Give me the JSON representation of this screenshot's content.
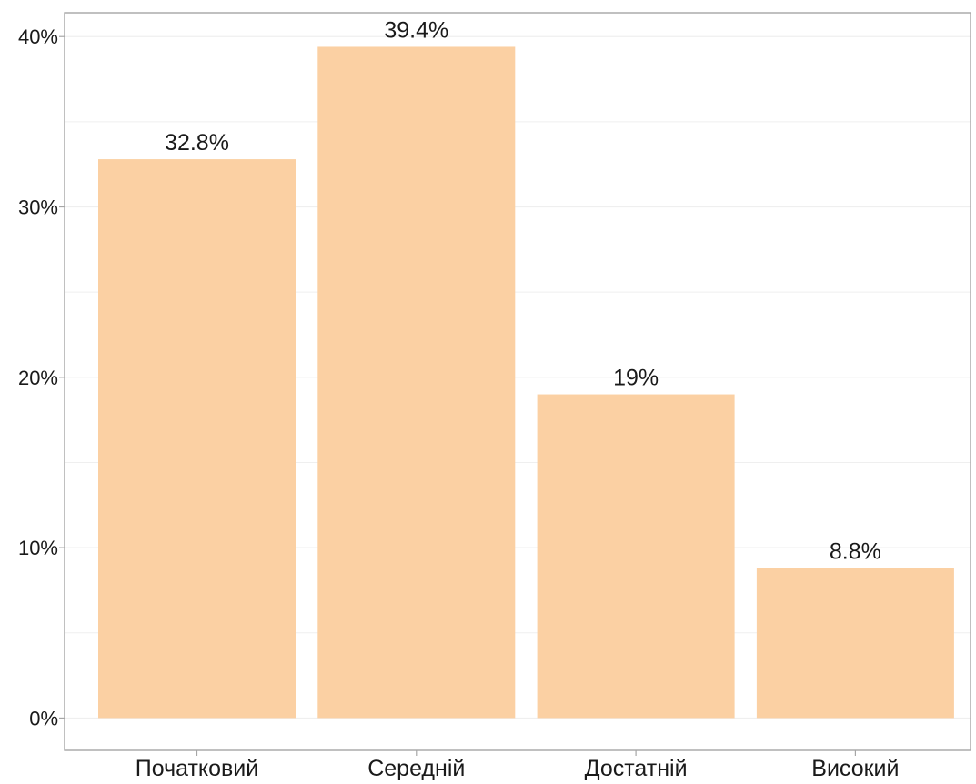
{
  "chart_data": {
    "type": "bar",
    "categories": [
      "Початковий",
      "Середній",
      "Достатній",
      "Високий"
    ],
    "values": [
      32.8,
      39.4,
      19,
      8.8
    ],
    "value_labels": [
      "32.8%",
      "39.4%",
      "19%",
      "8.8%"
    ],
    "title": "",
    "xlabel": "",
    "ylabel": "",
    "ylim": [
      -1.9,
      41.4
    ],
    "yticks": [
      0,
      10,
      20,
      30,
      40
    ],
    "ytick_labels": [
      "0%",
      "10%",
      "20%",
      "30%",
      "40%"
    ],
    "ytick_minor": [
      5,
      15,
      25,
      35
    ],
    "grid": true,
    "legend": "none",
    "colors": {
      "bar": "#fbd0a3",
      "grid": "#efefef",
      "axis": "#a6a6a6",
      "text": "#1a1a1a"
    }
  }
}
